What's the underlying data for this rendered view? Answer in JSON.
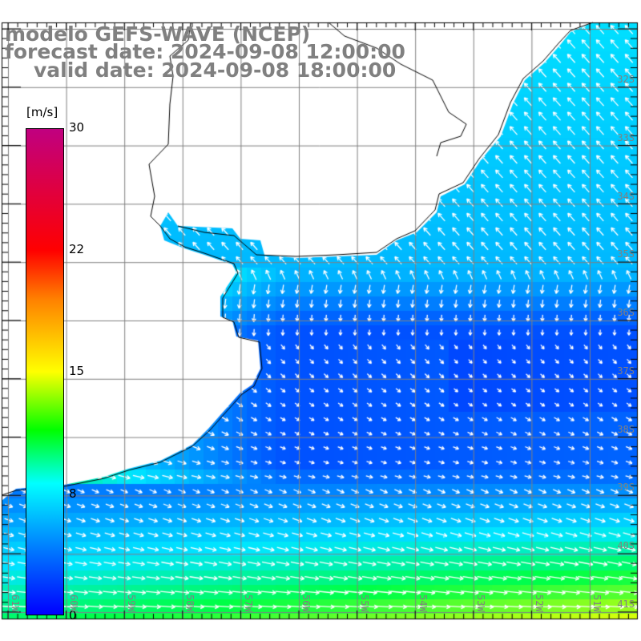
{
  "title": {
    "line1": "modelo GEFS-WAVE (NCEP)",
    "line2": "forecast date: 2024-09-08 12:00:00",
    "line3": "valid date: 2024-09-08 18:00:00"
  },
  "colorbar": {
    "unit": "[m/s]",
    "ticks": [
      "30",
      "22",
      "15",
      "8",
      "0"
    ],
    "range": [
      0,
      30
    ],
    "colors": [
      "#0000ff",
      "#0080ff",
      "#00ffff",
      "#00ff00",
      "#ffff00",
      "#ff8000",
      "#ff0000",
      "#c00080"
    ]
  },
  "lat_labels": [
    "32S",
    "33S",
    "34S",
    "35S",
    "36S",
    "37S",
    "38S",
    "39S",
    "40S",
    "41S"
  ],
  "lon_labels": [
    "61W",
    "60W",
    "59W",
    "58W",
    "57W",
    "56W",
    "55W",
    "54W",
    "53W",
    "52W",
    "51W"
  ]
}
